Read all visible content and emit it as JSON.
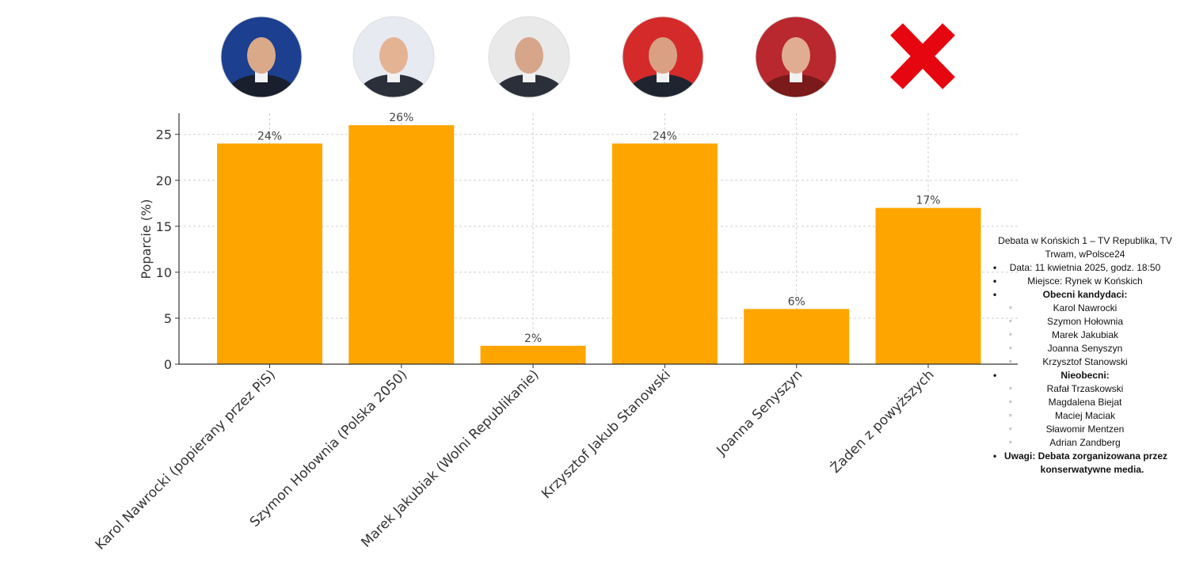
{
  "chart_data": {
    "type": "bar",
    "categories": [
      "Karol Nawrocki (popierany przez PiS)",
      "Szymon Hołownia (Polska 2050)",
      "Marek Jakubiak (Wolni Republikanie)",
      "Krzysztof Jakub Stanowski",
      "Joanna Senyszyn",
      "Żaden z powyższych"
    ],
    "values": [
      24,
      26,
      2,
      24,
      6,
      17
    ],
    "value_labels": [
      "24%",
      "26%",
      "2%",
      "24%",
      "6%",
      "17%"
    ],
    "ylabel": "Poparcie (%)",
    "xlabel": "",
    "ylim": [
      0,
      27.3
    ],
    "yticks": [
      0,
      5,
      10,
      15,
      20,
      25
    ],
    "grid": true,
    "bar_color": "#FFA500"
  },
  "avatars": [
    {
      "name": "Karol Nawrocki",
      "icon": "portrait-photo",
      "bg": "#1c3f8f",
      "suit": "#1a1f2e",
      "skin": "#d9a98a"
    },
    {
      "name": "Szymon Hołownia",
      "icon": "portrait-photo",
      "bg": "#e8eaf2",
      "suit": "#2a2f3a",
      "skin": "#e4b394"
    },
    {
      "name": "Marek Jakubiak",
      "icon": "portrait-photo",
      "bg": "#e9e9e9",
      "suit": "#2b2f3a",
      "skin": "#d7a58a"
    },
    {
      "name": "Krzysztof Jakub Stanowski",
      "icon": "portrait-photo",
      "bg": "#d42a2a",
      "suit": "#1f2530",
      "skin": "#d9a083"
    },
    {
      "name": "Joanna Senyszyn",
      "icon": "portrait-photo",
      "bg": "#b8282e",
      "suit": "#7a1a1a",
      "skin": "#e1ad92"
    }
  ],
  "none_icon": {
    "icon": "red-x-icon",
    "color": "#E6060F"
  },
  "note": {
    "title": "Debata w Końskich 1 – TV Republika, TV Trwam, wPolsce24",
    "date": "Data: 11 kwietnia 2025, godz. 18:50",
    "place": "Miejsce: Rynek w Końskich",
    "present_heading": "Obecni kandydaci:",
    "present": [
      "Karol Nawrocki",
      "Szymon Hołownia",
      "Marek Jakubiak",
      "Joanna Senyszyn",
      "Krzysztof Stanowski"
    ],
    "absent_heading": "Nieobecni:",
    "absent": [
      "Rafał Trzaskowski",
      "Magdalena Biejat",
      "Maciej Maciak",
      "Sławomir Mentzen",
      "Adrian Zandberg"
    ],
    "remark_1": "Uwagi: Debata zorganizowana przez",
    "remark_2": "konserwatywne media."
  }
}
